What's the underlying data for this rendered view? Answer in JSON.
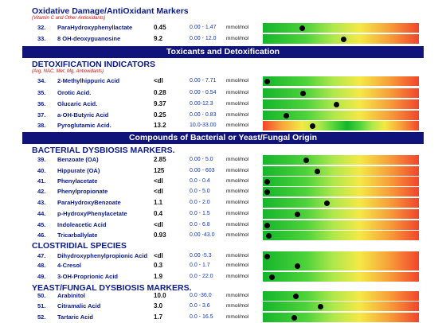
{
  "sections": {
    "oxidative": {
      "title": "Oxidative Damage/AntiOxidant Markers",
      "subtitle": "(Vitamin C and Other Antioxidants)"
    },
    "toxicants_banner": "Toxicants and Detoxification",
    "detox": {
      "title": "DETOXIFICATION INDICATORS",
      "subtitle": "(Arg, NAC, Met, Mg, Antioxidants)"
    },
    "compounds_banner": "Compounds of Bacterial or Yeast/Fungal Origin",
    "bacterial": {
      "title": "BACTERIAL DYSBIOSIS MARKERS."
    },
    "clostridial": {
      "title": "CLOSTRIDIAL SPECIES"
    },
    "yeast": {
      "title": "YEAST/FUNGAL DYSBIOSIS MARKERS."
    }
  },
  "rows": [
    {
      "num": "32.",
      "name": "ParaHydroxyphenyllactate",
      "value": "0.45",
      "range": "0.00 - 1.47",
      "unit": "mmol/mol",
      "level": 0.25
    },
    {
      "num": "33.",
      "name": "8 OH-deoxyguanosine",
      "value": "9.2",
      "range": "0.00 - 12.0",
      "unit": "mmol/mol",
      "level": 0.52
    },
    {
      "num": "34.",
      "name": "2-Methylhippuric Acid",
      "value": "<dl",
      "range": "0.00 - 7.71",
      "unit": "mmol/mol",
      "level": 0.03
    },
    {
      "num": "35.",
      "name": "Orotic Acid.",
      "value": "0.28",
      "range": "0.00 - 0.54",
      "unit": "mmol/mol",
      "level": 0.26
    },
    {
      "num": "36.",
      "name": "Glucaric Acid.",
      "value": "9.37",
      "range": "0.00-12.3",
      "unit": "mmol/mol",
      "level": 0.47
    },
    {
      "num": "37.",
      "name": "a-OH-Butyric Acid",
      "value": "0.25",
      "range": "0.00 - 0.83",
      "unit": "mmol/mol",
      "level": 0.15
    },
    {
      "num": "38.",
      "name": "Pyroglutamic Acid.",
      "value": "13.2",
      "range": "10.0-33.00",
      "unit": "mmol/mol",
      "level": 0.32,
      "bidirectional": true
    },
    {
      "num": "39.",
      "name": "Benzoate (OA)",
      "value": "2.85",
      "range": "0.00 - 5.0",
      "unit": "mmol/mol",
      "level": 0.28
    },
    {
      "num": "40.",
      "name": "Hippurate (OA)",
      "value": "125",
      "range": "0.00 - 603",
      "unit": "mmol/mol",
      "level": 0.35
    },
    {
      "num": "41.",
      "name": "Phenylacetate",
      "value": "<dl",
      "range": "0.0 - 0.4",
      "unit": "mmol/mol",
      "level": 0.03
    },
    {
      "num": "42.",
      "name": "Phenylpropionate",
      "value": "<dl",
      "range": "0.0 - 5.0",
      "unit": "mmol/mol",
      "level": 0.03
    },
    {
      "num": "43.",
      "name": "ParaHydroxyBenzoate",
      "value": "1.1",
      "range": "0.0 - 2.0",
      "unit": "mmol/mol",
      "level": 0.41
    },
    {
      "num": "44.",
      "name": "p-HydroxyPhenylacetate",
      "value": "0.4",
      "range": "0.0 - 1.5",
      "unit": "mmol/mol",
      "level": 0.22
    },
    {
      "num": "45.",
      "name": "Indoleacetic Acid",
      "value": "<dl",
      "range": "0.0 - 6.8",
      "unit": "mmol/mol",
      "level": 0.03
    },
    {
      "num": "46.",
      "name": "Tricarballylate",
      "value": "0.93",
      "range": "0.00 -43.0",
      "unit": "mmol/mol",
      "level": 0.04
    },
    {
      "num": "47.",
      "name": "Dihydroxyphenylpropionic Acid",
      "value": "<dl",
      "range": "0.00 -5.3",
      "unit": "mmol/mol",
      "level": 0.03
    },
    {
      "num": "48.",
      "name": "4-Cresol",
      "value": "0.3",
      "range": "0.0 - 1.7",
      "unit": "mmol/mol",
      "level": 0.22
    },
    {
      "num": "49.",
      "name": "3-OH-Proprionic Acid",
      "value": "1.9",
      "range": "0.0 - 22.0",
      "unit": "mmol/mol",
      "level": 0.06
    },
    {
      "num": "50.",
      "name": "Arabinitol",
      "value": "10.0",
      "range": "0.0 -36.0",
      "unit": "mmol/mol",
      "level": 0.21
    },
    {
      "num": "51.",
      "name": "Citramalic Acid",
      "value": "3.0",
      "range": "0.0 - 3.6",
      "unit": "mmol/mol",
      "level": 0.37
    },
    {
      "num": "52.",
      "name": "Tartaric Acid",
      "value": "1.7",
      "range": "0.0 - 16.5",
      "unit": "mmol/mol",
      "level": 0.2
    }
  ]
}
